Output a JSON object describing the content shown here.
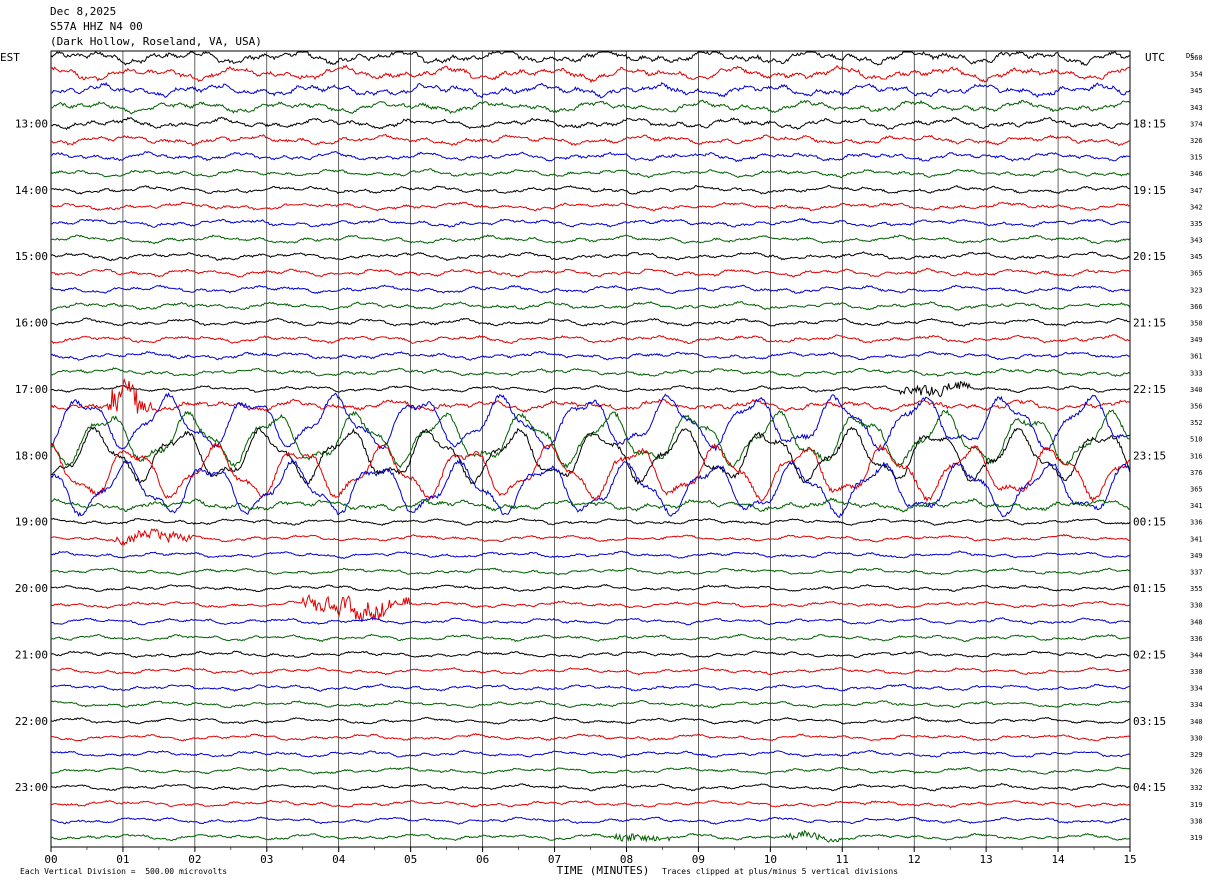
{
  "header": {
    "date": "Dec 8,2025",
    "station": "S57A HHZ N4 00",
    "location": "(Dark Hollow, Roseland, VA, USA)"
  },
  "chart_data": {
    "type": "line",
    "title": "S57A HHZ N4 00",
    "left_axis_label": "EST",
    "right_axis_label": "UTC",
    "dc_label": "DC",
    "xlabel": "TIME (MINUTES)",
    "x_ticks": [
      "00",
      "01",
      "02",
      "03",
      "04",
      "05",
      "06",
      "07",
      "08",
      "09",
      "10",
      "11",
      "12",
      "13",
      "14",
      "15"
    ],
    "xlim": [
      0,
      15
    ],
    "grid": true,
    "left_hour_labels": [
      "13:00",
      "14:00",
      "15:00",
      "16:00",
      "17:00",
      "18:00",
      "19:00",
      "20:00",
      "21:00",
      "22:00",
      "23:00"
    ],
    "right_hour_labels": [
      "18:15",
      "19:15",
      "20:15",
      "21:15",
      "22:15",
      "23:15",
      "00:15",
      "01:15",
      "02:15",
      "03:15",
      "04:15"
    ],
    "trace_colors": [
      "#000000",
      "#e00000",
      "#0000d0",
      "#006000"
    ],
    "dc_offsets": [
      "360",
      "354",
      "345",
      "343",
      "374",
      "326",
      "315",
      "346",
      "347",
      "342",
      "335",
      "343",
      "345",
      "365",
      "323",
      "366",
      "350",
      "349",
      "361",
      "333",
      "340",
      "356",
      "352",
      "510",
      "316",
      "376",
      "365",
      "341",
      "336",
      "341",
      "349",
      "337",
      "355",
      "330",
      "348",
      "336",
      "344",
      "330",
      "334",
      "334",
      "340",
      "330",
      "329",
      "326",
      "332",
      "319",
      "338",
      "319"
    ],
    "events": [
      {
        "trace": 21,
        "start_min": 0.8,
        "end_min": 1.4,
        "amplitude": "large"
      },
      {
        "trace": 20,
        "start_min": 11.8,
        "end_min": 12.8,
        "amplitude": "medium"
      },
      {
        "trace": 29,
        "start_min": 0.8,
        "end_min": 2.0,
        "amplitude": "medium"
      },
      {
        "trace": 33,
        "start_min": 3.5,
        "end_min": 5.0,
        "amplitude": "large"
      },
      {
        "trace": 47,
        "start_min": 7.8,
        "end_min": 8.6,
        "amplitude": "small"
      },
      {
        "trace": 47,
        "start_min": 10.2,
        "end_min": 11.0,
        "amplitude": "small"
      }
    ],
    "storm_traces": [
      22,
      23,
      24,
      25,
      26
    ]
  },
  "footer": {
    "scale_note": "Each Vertical Division =  500.00 microvolts",
    "clip_note": "Traces clipped at plus/minus 5 vertical divisions"
  }
}
